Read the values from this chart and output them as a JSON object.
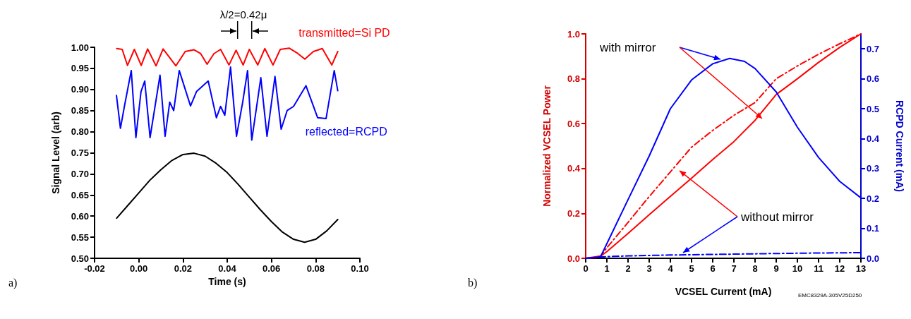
{
  "chart_data": [
    {
      "type": "line",
      "xlabel": "Time (s)",
      "ylabel": "Signal Level (arb)",
      "annotations": [
        "λ/2=0.42μ",
        "a)"
      ],
      "xlim": [
        -0.02,
        0.1
      ],
      "xticks": [
        -0.02,
        {
          "value": 0,
          "label": "0.00"
        },
        0.02,
        0.04,
        0.06,
        0.08,
        {
          "value": 0.1,
          "label": "0.10"
        }
      ],
      "ylim": [
        0.5,
        1.0
      ],
      "yticks": [
        {
          "value": 0.5,
          "label": "0.50"
        },
        0.55,
        {
          "value": 0.6,
          "label": "0.60"
        },
        0.65,
        {
          "value": 0.7,
          "label": "0.70"
        },
        0.75,
        {
          "value": 0.8,
          "label": "0.80"
        },
        0.85,
        {
          "value": 0.9,
          "label": "0.90"
        },
        0.95,
        {
          "value": 1.0,
          "label": "1.00"
        }
      ],
      "grid": false,
      "legend": false,
      "marker": "none",
      "line_style": "solid",
      "series": [
        {
          "name": "transmitted=Si PD",
          "color": "#ff0000",
          "x": [
            -0.01,
            -0.0075,
            -0.0051,
            -0.002,
            0.0011,
            0.004,
            0.0078,
            0.011,
            0.0168,
            0.021,
            0.025,
            0.028,
            0.0309,
            0.034,
            0.037,
            0.0408,
            0.044,
            0.0472,
            0.05,
            0.0538,
            0.057,
            0.0607,
            0.064,
            0.068,
            0.072,
            0.0751,
            0.079,
            0.083,
            0.0873,
            0.09
          ],
          "values": [
            0.997,
            0.995,
            0.957,
            0.995,
            0.957,
            0.996,
            0.956,
            0.996,
            0.956,
            0.99,
            0.994,
            0.985,
            0.96,
            0.985,
            0.995,
            0.958,
            0.993,
            0.958,
            0.995,
            0.958,
            0.997,
            0.958,
            0.995,
            0.998,
            0.985,
            0.972,
            0.99,
            0.997,
            0.958,
            0.99
          ]
        },
        {
          "name": "reflected=RCPD",
          "color": "#0000ff",
          "x": [
            -0.0101,
            -0.0083,
            -0.0065,
            -0.0034,
            -0.0013,
            0.001,
            0.0027,
            0.0051,
            0.0096,
            0.0119,
            0.014,
            0.0158,
            0.0183,
            0.0234,
            0.0261,
            0.0314,
            0.0351,
            0.037,
            0.0389,
            0.0415,
            0.0442,
            0.047,
            0.0492,
            0.0511,
            0.0552,
            0.058,
            0.0616,
            0.0644,
            0.0671,
            0.07,
            0.0756,
            0.0809,
            0.0847,
            0.0884,
            0.09
          ],
          "values": [
            0.886,
            0.808,
            0.86,
            0.945,
            0.786,
            0.895,
            0.92,
            0.786,
            0.934,
            0.789,
            0.87,
            0.85,
            0.945,
            0.861,
            0.895,
            0.92,
            0.833,
            0.86,
            0.839,
            0.953,
            0.789,
            0.87,
            0.945,
            0.78,
            0.928,
            0.789,
            0.931,
            0.806,
            0.85,
            0.86,
            0.909,
            0.833,
            0.831,
            0.945,
            0.897
          ]
        },
        {
          "color": "#000000",
          "x": [
            -0.01,
            -0.005,
            0,
            0.005,
            0.01,
            0.015,
            0.02,
            0.025,
            0.03,
            0.035,
            0.04,
            0.045,
            0.05,
            0.055,
            0.06,
            0.065,
            0.07,
            0.075,
            0.08,
            0.085,
            0.09
          ],
          "values": [
            0.595,
            0.625,
            0.655,
            0.685,
            0.71,
            0.732,
            0.746,
            0.749,
            0.742,
            0.725,
            0.703,
            0.675,
            0.645,
            0.615,
            0.587,
            0.562,
            0.545,
            0.538,
            0.545,
            0.565,
            0.592
          ]
        }
      ]
    },
    {
      "type": "line",
      "xlabel": "VCSEL Current (mA)",
      "ylabel": "Normalized VCSEL Power",
      "y2label": "RCPD Current (mA)",
      "annotations": [
        "with mirror",
        {
          "text": "without mirror",
          "x": 4.3,
          "y": 0.4
        },
        "b)",
        "EMC8329A-305V25D250"
      ],
      "xlim": [
        0,
        13
      ],
      "xticks": [
        0,
        1,
        2,
        3,
        4,
        5,
        6,
        7,
        8,
        9,
        10,
        11,
        12,
        13
      ],
      "ylim": [
        0,
        1
      ],
      "yticks": [
        {
          "value": 0,
          "label": "0.0"
        },
        0.2,
        0.4,
        0.6,
        0.8,
        {
          "value": 1,
          "label": "1.0"
        }
      ],
      "y2lim": [
        0,
        0.75
      ],
      "y2ticks": [
        {
          "value": 0,
          "label": "0.0"
        },
        0.1,
        0.2,
        0.3,
        0.4,
        0.5,
        0.6,
        0.7
      ],
      "grid": false,
      "legend": false,
      "marker": "none",
      "series": [
        {
          "color": "#ff0000",
          "line_style": "solid",
          "x": [
            0,
            0.7,
            1,
            2,
            3,
            4,
            5,
            6,
            7,
            8,
            9,
            10,
            11,
            12,
            13
          ],
          "values": [
            0,
            0.01,
            0.03,
            0.111,
            0.194,
            0.276,
            0.357,
            0.44,
            0.52,
            0.615,
            0.73,
            0.8,
            0.873,
            0.94,
            1.0
          ]
        },
        {
          "color": "#ff0000",
          "line_style": "dashed",
          "x": [
            0,
            0.5,
            0.7,
            1,
            2,
            3,
            4,
            5,
            6,
            7,
            8,
            9,
            10,
            11,
            12,
            13
          ],
          "values": [
            0,
            0.003,
            0.01,
            0.047,
            0.16,
            0.275,
            0.385,
            0.495,
            0.57,
            0.637,
            0.694,
            0.8,
            0.857,
            0.909,
            0.956,
            1.0
          ]
        },
        {
          "color": "#0000ff",
          "line_style": "solid",
          "axis": "y2",
          "x": [
            0,
            0.5,
            0.7,
            1,
            2,
            3,
            4,
            5,
            6,
            6.8,
            7.5,
            8,
            9,
            10,
            11,
            12,
            13
          ],
          "values": [
            0,
            0.003,
            0.005,
            0.049,
            0.196,
            0.342,
            0.5,
            0.596,
            0.65,
            0.668,
            0.658,
            0.634,
            0.556,
            0.438,
            0.337,
            0.257,
            0.202
          ]
        },
        {
          "color": "#0000ff",
          "line_style": "dashed",
          "axis": "y2",
          "x": [
            0,
            0.7,
            2,
            4,
            6,
            8,
            10,
            13
          ],
          "values": [
            0,
            0.005,
            0.008,
            0.011,
            0.013,
            0.015,
            0.017,
            0.019
          ]
        }
      ]
    }
  ]
}
